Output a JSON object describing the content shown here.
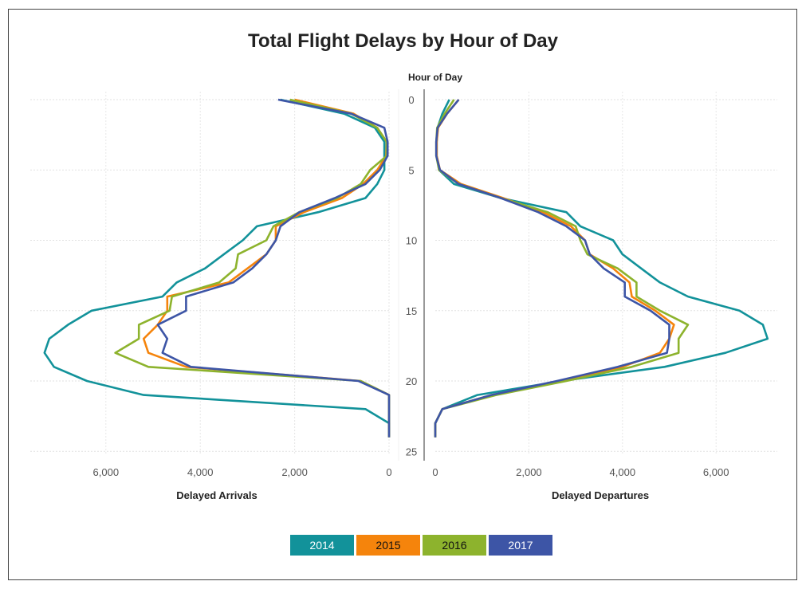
{
  "chart_data": {
    "type": "line",
    "title": "Total Flight Delays by Hour of Day",
    "hour_axis_label": "Hour of Day",
    "hour_ticks": [
      0,
      5,
      10,
      15,
      20,
      25
    ],
    "hours": [
      0,
      1,
      2,
      3,
      4,
      5,
      6,
      7,
      8,
      9,
      10,
      11,
      12,
      13,
      14,
      15,
      16,
      17,
      18,
      19,
      20,
      21,
      22,
      23,
      24
    ],
    "left_panel": {
      "xlabel": "Delayed Arrivals",
      "xlim": [
        7400,
        0
      ],
      "tick_labels": [
        "6,000",
        "4,000",
        "2,000",
        "0"
      ],
      "tick_values": [
        6000,
        4000,
        2000,
        0
      ]
    },
    "right_panel": {
      "xlabel": "Delayed Departures",
      "xlim": [
        0,
        7400
      ],
      "tick_labels": [
        "0",
        "2,000",
        "4,000",
        "6,000"
      ],
      "tick_values": [
        0,
        2000,
        4000,
        6000
      ]
    },
    "series": [
      {
        "name": "2014",
        "color": "#12929a",
        "arrivals": [
          2300,
          950,
          300,
          100,
          100,
          100,
          250,
          500,
          1500,
          2800,
          3100,
          3500,
          3900,
          4500,
          4800,
          6300,
          6800,
          7200,
          7300,
          7100,
          6400,
          5200,
          500,
          0,
          0
        ],
        "departures": [
          300,
          150,
          50,
          30,
          30,
          80,
          400,
          1400,
          2800,
          3100,
          3800,
          4000,
          4400,
          4800,
          5400,
          6500,
          7000,
          7100,
          6200,
          4900,
          2700,
          900,
          150,
          0,
          0
        ]
      },
      {
        "name": "2015",
        "color": "#f5840c",
        "arrivals": [
          2000,
          750,
          250,
          50,
          60,
          250,
          550,
          1000,
          1800,
          2400,
          2400,
          2600,
          3000,
          3400,
          4700,
          4700,
          4900,
          5200,
          5100,
          4300,
          600,
          0,
          0,
          0,
          0
        ],
        "departures": [
          500,
          250,
          60,
          30,
          30,
          100,
          550,
          1450,
          2300,
          2900,
          3200,
          3300,
          3800,
          4150,
          4200,
          4700,
          5100,
          5000,
          4800,
          4000,
          2700,
          1200,
          150,
          0,
          0
        ]
      },
      {
        "name": "2016",
        "color": "#8db32d",
        "arrivals": [
          2100,
          800,
          250,
          50,
          50,
          400,
          600,
          1100,
          1900,
          2450,
          2600,
          3200,
          3250,
          3600,
          4600,
          4650,
          5300,
          5300,
          5800,
          5100,
          600,
          0,
          0,
          0,
          0
        ],
        "departures": [
          400,
          200,
          40,
          20,
          20,
          80,
          500,
          1400,
          2400,
          3000,
          3100,
          3250,
          3900,
          4300,
          4300,
          4800,
          5400,
          5200,
          5200,
          4200,
          2800,
          1300,
          150,
          0,
          0
        ]
      },
      {
        "name": "2017",
        "color": "#3d55a6",
        "arrivals": [
          2350,
          800,
          100,
          30,
          30,
          200,
          500,
          1150,
          1900,
          2300,
          2400,
          2600,
          2900,
          3300,
          4300,
          4300,
          4900,
          4700,
          4800,
          4200,
          650,
          0,
          0,
          0,
          0
        ],
        "departures": [
          500,
          250,
          50,
          20,
          20,
          100,
          500,
          1400,
          2200,
          2800,
          3200,
          3300,
          3600,
          4050,
          4050,
          4600,
          5000,
          5000,
          4950,
          3900,
          2600,
          1200,
          150,
          0,
          0
        ]
      }
    ],
    "legend": [
      "2014",
      "2015",
      "2016",
      "2017"
    ]
  }
}
